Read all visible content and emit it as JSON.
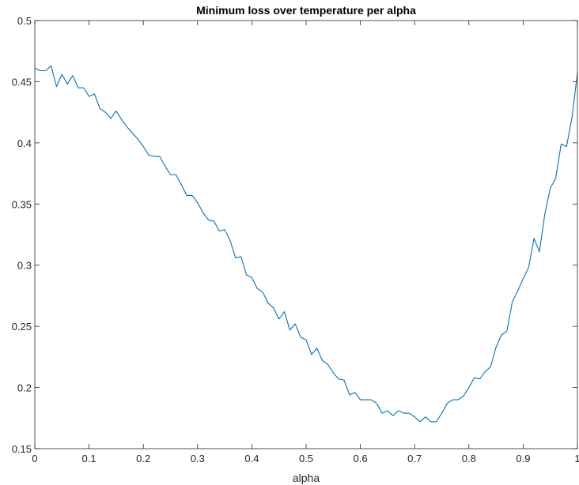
{
  "chart_data": {
    "type": "line",
    "title": "Minimum loss over temperature per alpha",
    "xlabel": "alpha",
    "ylabel": "",
    "xlim": [
      0,
      1
    ],
    "ylim": [
      0.15,
      0.5
    ],
    "xticks": [
      0,
      0.1,
      0.2,
      0.3,
      0.4,
      0.5,
      0.6,
      0.7,
      0.8,
      0.9,
      1
    ],
    "xtick_labels": [
      "0",
      "0.1",
      "0.2",
      "0.3",
      "0.4",
      "0.5",
      "0.6",
      "0.7",
      "0.8",
      "0.9",
      "1"
    ],
    "yticks": [
      0.15,
      0.2,
      0.25,
      0.3,
      0.35,
      0.4,
      0.45,
      0.5
    ],
    "ytick_labels": [
      "0.15",
      "0.2",
      "0.25",
      "0.3",
      "0.35",
      "0.4",
      "0.45",
      "0.5"
    ],
    "grid": false,
    "box": true,
    "line_color": "#0072BD",
    "series": [
      {
        "x": [
          0,
          0.01,
          0.02,
          0.03,
          0.04,
          0.05,
          0.06,
          0.07,
          0.08,
          0.09,
          0.1,
          0.11,
          0.12,
          0.13,
          0.14,
          0.15,
          0.16,
          0.17,
          0.18,
          0.19,
          0.2,
          0.21,
          0.22,
          0.23,
          0.24,
          0.25,
          0.26,
          0.27,
          0.28,
          0.29,
          0.3,
          0.31,
          0.32,
          0.33,
          0.34,
          0.35,
          0.36,
          0.37,
          0.38,
          0.39,
          0.4,
          0.41,
          0.42,
          0.43,
          0.44,
          0.45,
          0.46,
          0.47,
          0.48,
          0.49,
          0.5,
          0.51,
          0.52,
          0.53,
          0.54,
          0.55,
          0.56,
          0.57,
          0.58,
          0.59,
          0.6,
          0.61,
          0.62,
          0.63,
          0.64,
          0.65,
          0.66,
          0.67,
          0.68,
          0.69,
          0.7,
          0.71,
          0.72,
          0.73,
          0.74,
          0.75,
          0.76,
          0.77,
          0.78,
          0.79,
          0.8,
          0.81,
          0.82,
          0.83,
          0.84,
          0.85,
          0.86,
          0.87,
          0.88,
          0.89,
          0.9,
          0.91,
          0.92,
          0.93,
          0.94,
          0.95,
          0.96,
          0.97,
          0.98,
          0.99,
          1
        ],
        "y": [
          0.461,
          0.459,
          0.459,
          0.463,
          0.446,
          0.456,
          0.448,
          0.455,
          0.445,
          0.445,
          0.438,
          0.44,
          0.428,
          0.425,
          0.42,
          0.426,
          0.419,
          0.413,
          0.408,
          0.403,
          0.397,
          0.39,
          0.389,
          0.389,
          0.381,
          0.374,
          0.374,
          0.366,
          0.357,
          0.357,
          0.351,
          0.343,
          0.337,
          0.336,
          0.328,
          0.329,
          0.32,
          0.306,
          0.307,
          0.292,
          0.29,
          0.281,
          0.278,
          0.269,
          0.265,
          0.256,
          0.262,
          0.247,
          0.252,
          0.241,
          0.239,
          0.227,
          0.232,
          0.222,
          0.219,
          0.212,
          0.207,
          0.206,
          0.194,
          0.196,
          0.19,
          0.19,
          0.19,
          0.187,
          0.179,
          0.181,
          0.177,
          0.181,
          0.179,
          0.179,
          0.176,
          0.172,
          0.176,
          0.172,
          0.172,
          0.179,
          0.187,
          0.19,
          0.19,
          0.193,
          0.2,
          0.208,
          0.207,
          0.213,
          0.217,
          0.233,
          0.243,
          0.246,
          0.27,
          0.279,
          0.289,
          0.298,
          0.322,
          0.311,
          0.342,
          0.363,
          0.371,
          0.399,
          0.397,
          0.421,
          0.457
        ]
      }
    ]
  }
}
